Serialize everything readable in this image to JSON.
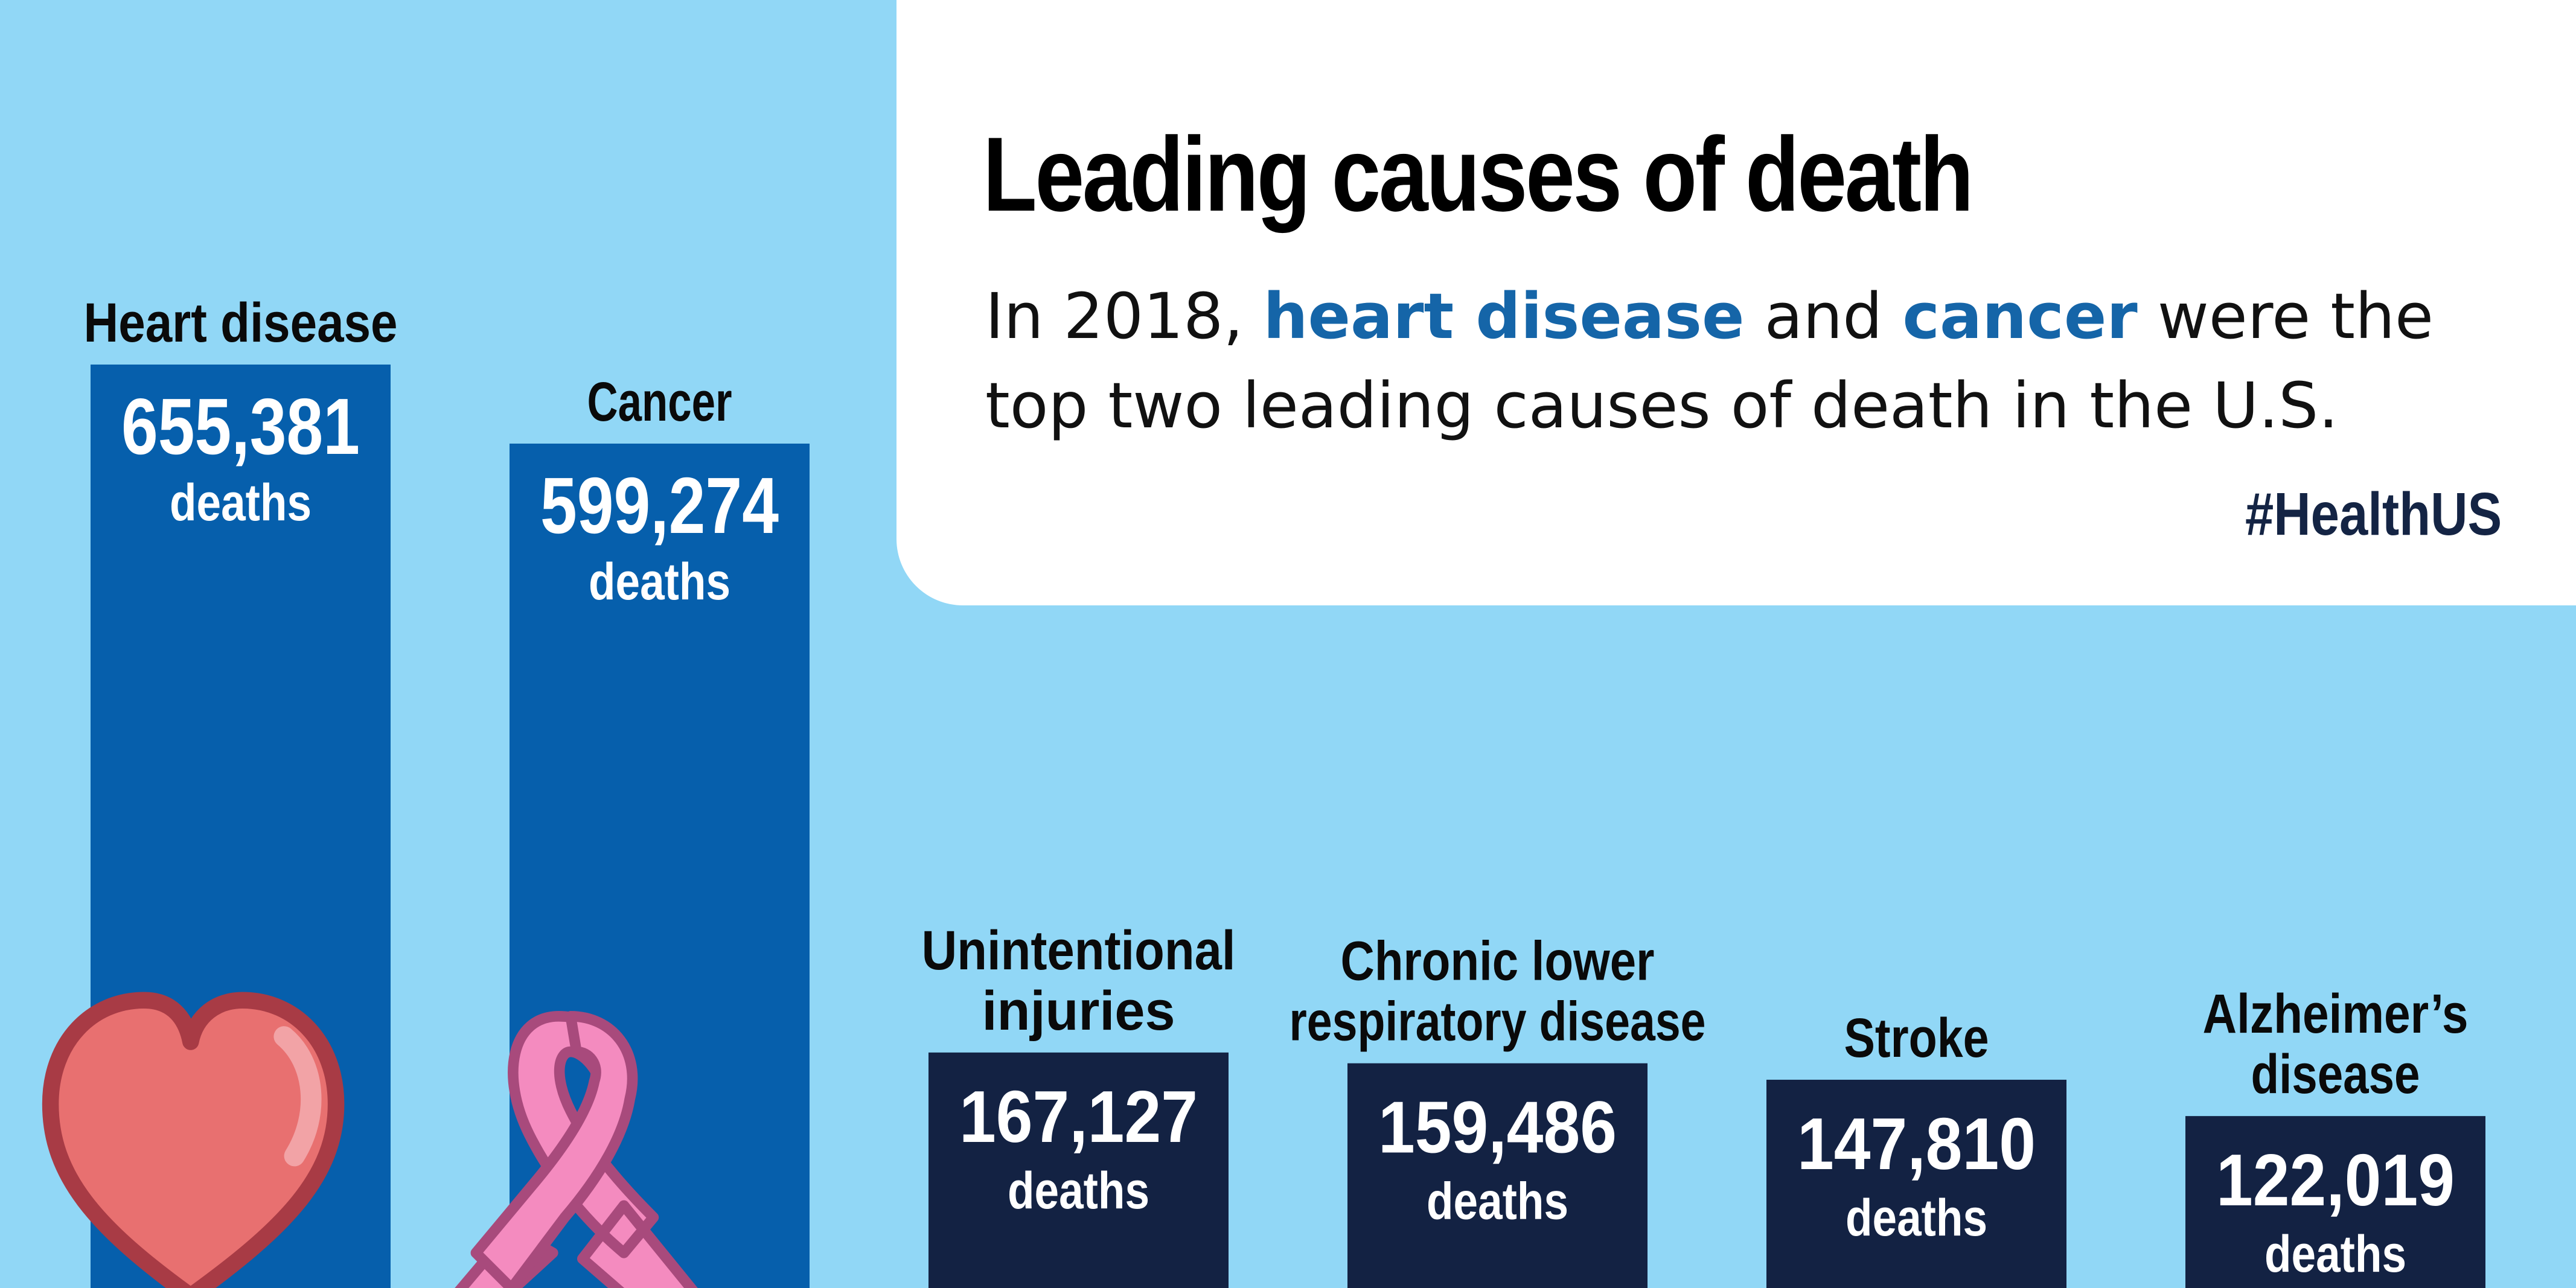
{
  "header": {
    "title": "Leading causes of death",
    "subtitle_parts": [
      "In 2018, ",
      "heart disease",
      " and ",
      "cancer",
      " were the top two leading causes of death in the U.S."
    ],
    "hashtag": "#HealthUS"
  },
  "icons": [
    "heart-icon",
    "awareness-ribbon-icon"
  ],
  "colors": {
    "background": "#91d7f6",
    "panel": "#ffffff",
    "top_bar": "#065fac",
    "other_bar": "#132243",
    "highlight_text": "#1565a8",
    "heart": "#e87070",
    "ribbon": "#f48bbf"
  },
  "chart_data": {
    "type": "bar",
    "categories": [
      "Heart disease",
      "Cancer",
      "Unintentional injuries",
      "Chronic lower respiratory disease",
      "Stroke",
      "Alzheimer’s disease"
    ],
    "values": [
      655381,
      599274,
      167127,
      159486,
      147810,
      122019
    ],
    "value_labels": [
      "655,381",
      "599,274",
      "167,127",
      "159,486",
      "147,810",
      "122,019"
    ],
    "unit_label": "deaths",
    "title": "Leading causes of death",
    "xlabel": "",
    "ylabel": ""
  }
}
